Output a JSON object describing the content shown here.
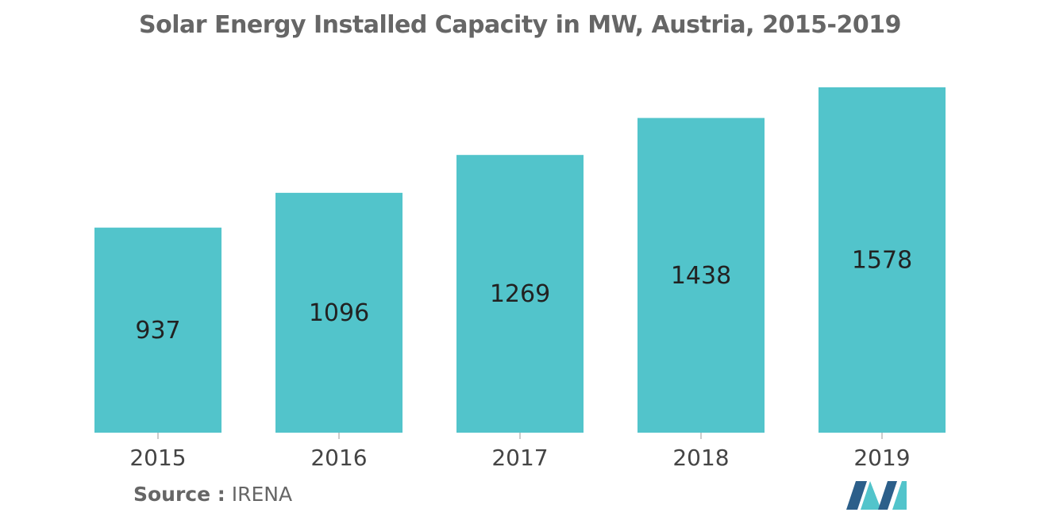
{
  "chart_data": {
    "type": "bar",
    "title": "Solar Energy Installed Capacity in MW, Austria, 2015-2019",
    "categories": [
      "2015",
      "2016",
      "2017",
      "2018",
      "2019"
    ],
    "values": [
      937,
      1096,
      1269,
      1438,
      1578
    ],
    "xlabel": "",
    "ylabel": "",
    "grid": false,
    "data_labels": true
  },
  "source": {
    "label": "Source :",
    "value": "IRENA"
  },
  "colors": {
    "bar": "#52c4cb",
    "label": "#222222",
    "axis_text": "#444444",
    "title": "#666666",
    "logo_dark": "#2c5f8a",
    "logo_light": "#52c4cb"
  },
  "logo": {
    "icon": "mordor-logo-icon"
  }
}
